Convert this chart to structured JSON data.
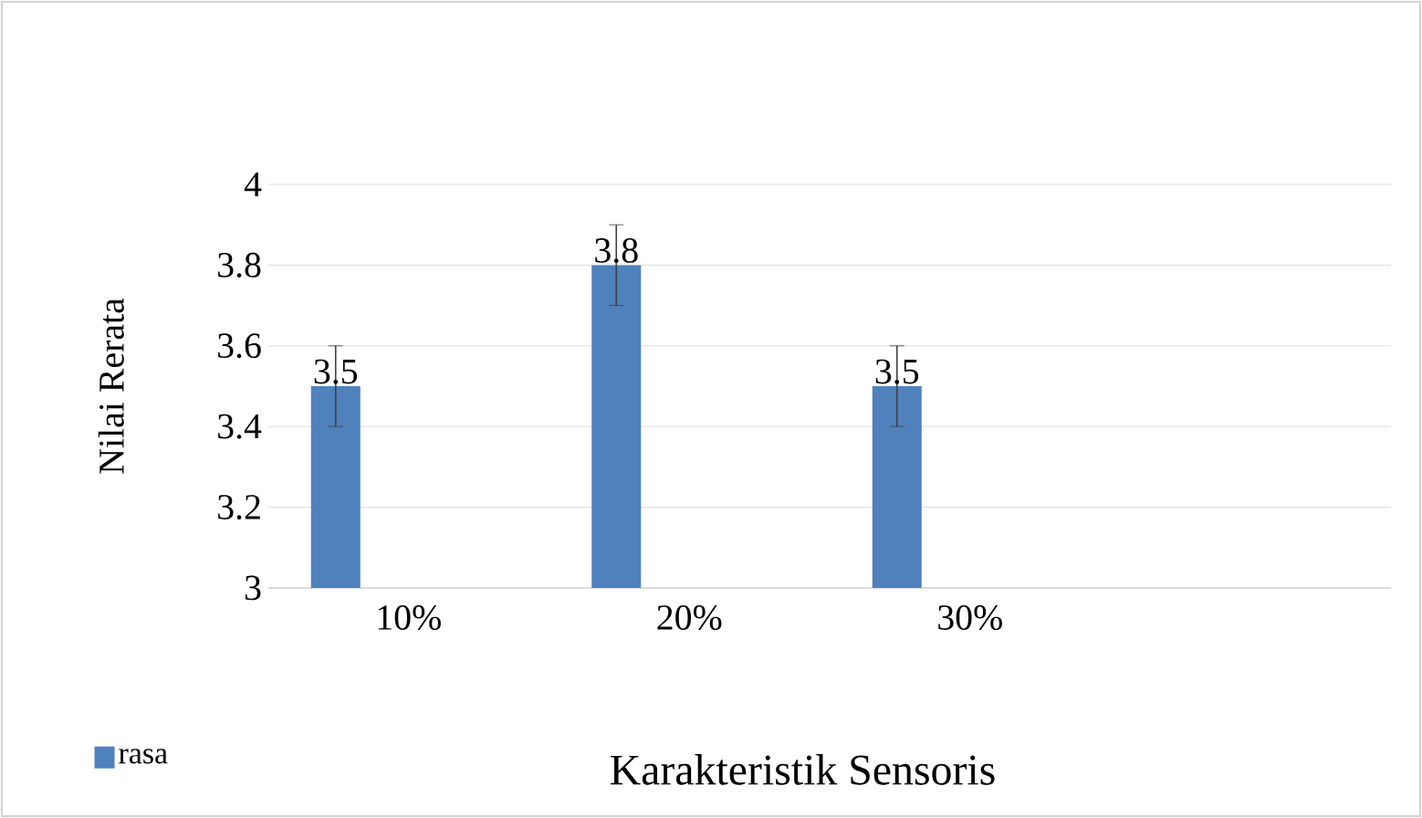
{
  "chart_data": {
    "type": "bar",
    "xlabel": "Karakteristik Sensoris",
    "ylabel": "Nilai Rerata",
    "categories": [
      "10%",
      "20%",
      "30%",
      null
    ],
    "series": [
      {
        "name": "rasa",
        "color": "#4f81bd",
        "values": [
          3.5,
          3.8,
          3.5,
          null
        ],
        "errors": [
          0.1,
          0.1,
          0.1,
          null
        ]
      }
    ],
    "ylim": [
      3,
      4
    ],
    "yticks": [
      3,
      3.2,
      3.4,
      3.6,
      3.8,
      4
    ],
    "grid": "y",
    "legend": "bottom left",
    "data_labels": true
  }
}
